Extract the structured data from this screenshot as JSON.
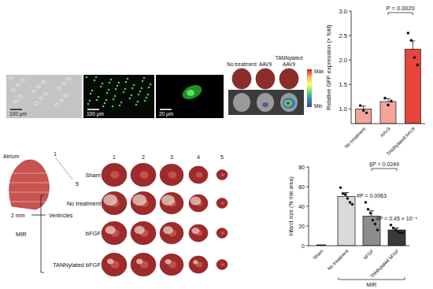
{
  "images": {
    "micrographs": [
      {
        "scale_bar": "100 μm"
      },
      {
        "scale_bar": "100 μm"
      },
      {
        "scale_bar": "20 μm"
      }
    ],
    "heart_imaging": {
      "groups": [
        "No treatment",
        "AAV9",
        "TANNylated AAV9"
      ],
      "color_bar": {
        "max": "Max",
        "min": "Min"
      }
    },
    "heart_sections": {
      "atrium": "Atrium",
      "ventricles": "Ventricles",
      "slice_first": "1",
      "slice_last": "5",
      "thickness": "2 mm",
      "slices": [
        "1",
        "2",
        "3",
        "4",
        "5"
      ],
      "groups": [
        "Sham",
        "No treatment",
        "bFGF",
        "TANNylated bFGF"
      ],
      "group_label": "MIR"
    }
  },
  "chart_data": [
    {
      "type": "bar",
      "y_label": "Relative GFP expression (× fold)",
      "categories": [
        "No treatment",
        "AAV9",
        "TANNylated AAV9"
      ],
      "values": [
        1.0,
        1.15,
        2.22
      ],
      "errors": [
        0.06,
        0.06,
        0.17
      ],
      "points": [
        [
          1.07,
          0.97,
          0.92
        ],
        [
          1.22,
          1.08,
          1.16
        ],
        [
          2.55,
          2.4,
          2.05,
          1.9
        ]
      ],
      "colors": [
        "#f4a49c",
        "#f4a49c",
        "#e8453c"
      ],
      "ylim": [
        0.7,
        3.0
      ],
      "yticks": [
        {
          "value": 1,
          "label": "1.0"
        },
        {
          "value": 1.5,
          "label": "1.5"
        },
        {
          "value": 2,
          "label": "2.0"
        },
        {
          "value": 2.5,
          "label": "2.5"
        },
        {
          "value": 3,
          "label": "3.0"
        }
      ],
      "annotations": [
        {
          "text": "P = 0.0020",
          "between": [
            "AAV9",
            "TANNylated AAV9"
          ]
        }
      ]
    },
    {
      "type": "bar",
      "y_label": "Infarct size (% risk area)",
      "categories": [
        "Sham",
        "No treatment",
        "bFGF",
        "TANNylated bFGF"
      ],
      "values": [
        0,
        50,
        30,
        16
      ],
      "errors": [
        0,
        4,
        5.5,
        2
      ],
      "points": [
        [
          0,
          0,
          0,
          0
        ],
        [
          59,
          53,
          52,
          48,
          44,
          42
        ],
        [
          44,
          37,
          33,
          26,
          22,
          16
        ],
        [
          21,
          18,
          16,
          14,
          13,
          13
        ]
      ],
      "colors": [
        "#3a3a3a",
        "#d9d9d9",
        "#8c8c8c",
        "#3a3a3a"
      ],
      "ylim": [
        0,
        80
      ],
      "yticks": [
        0,
        20,
        40,
        60,
        80
      ],
      "annotations": [
        {
          "text": "#P = 0.0063",
          "at": "bFGF"
        },
        {
          "text": "#P = 0.45 × 10⁻⁴",
          "at": "TANNylated bFGF"
        },
        {
          "text": "§P = 0.0249",
          "between": [
            "bFGF",
            "TANNylated bFGF"
          ]
        }
      ],
      "groups": [
        {
          "label": "MIR",
          "categories": [
            "No treatment",
            "bFGF",
            "TANNylated bFGF"
          ]
        }
      ]
    }
  ]
}
